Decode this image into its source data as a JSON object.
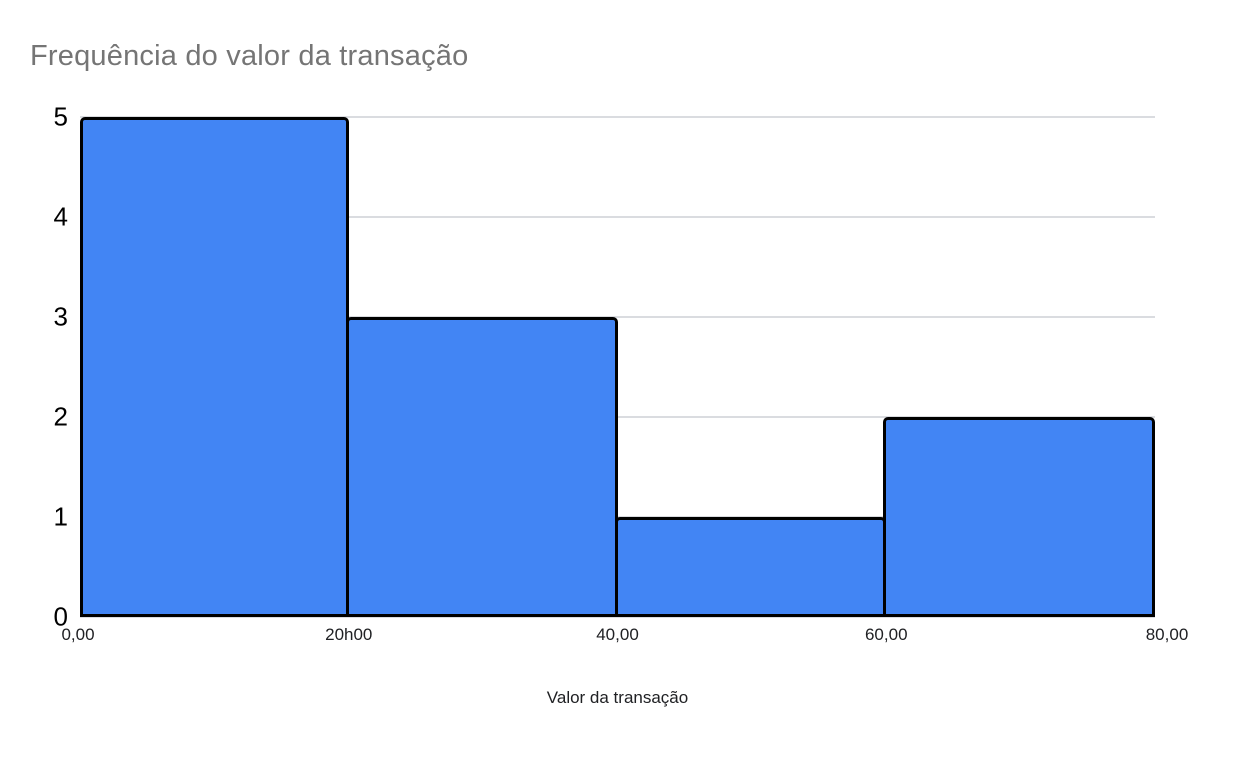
{
  "chart_data": {
    "type": "bar",
    "subtype": "histogram",
    "title": "Frequência do valor da transação",
    "xlabel": "Valor da transação",
    "ylabel": "",
    "bin_edges": [
      "0,00",
      "20h00",
      "40,00",
      "60,00",
      "80,00"
    ],
    "categories": [
      "0,00–20h00",
      "20h00–40,00",
      "40,00–60,00",
      "60,00–80,00"
    ],
    "values": [
      5,
      3,
      1,
      2
    ],
    "x_tick_labels": [
      "0,00",
      "20h00",
      "40,00",
      "60,00",
      "80,00"
    ],
    "y_tick_labels": [
      "0",
      "1",
      "2",
      "3",
      "4",
      "5"
    ],
    "ylim": [
      0,
      5
    ],
    "grid": true,
    "legend_position": "none",
    "colors": {
      "bar_fill": "#4285f4",
      "bar_border": "#000000",
      "gridline": "#dadce0",
      "title_text": "#757575",
      "axis_text": "#202124",
      "y_tick_text": "#000000",
      "background": "#ffffff"
    }
  }
}
